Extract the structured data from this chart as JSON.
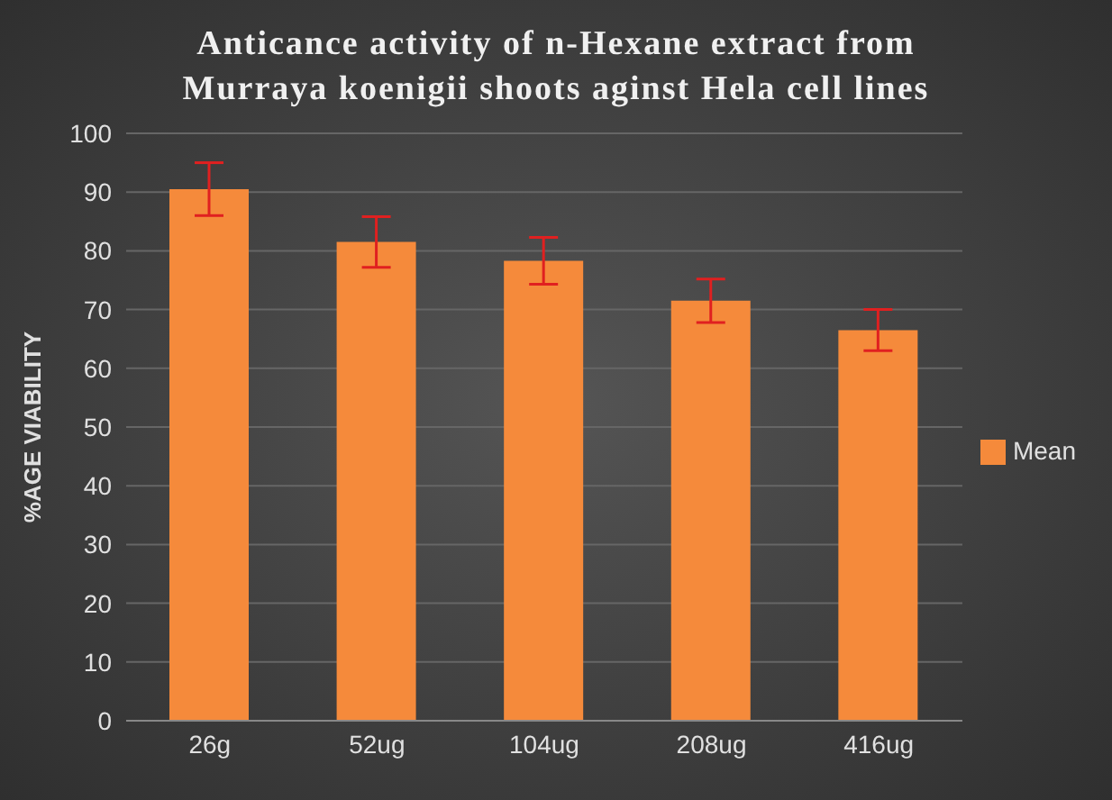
{
  "chart_data": {
    "type": "bar",
    "title": "Anticance activity of n-Hexane extract from Murraya koenigii shoots aginst Hela cell lines",
    "ylabel": "%AGE VIABILITY",
    "categories": [
      "26g",
      "52ug",
      "104ug",
      "208ug",
      "416ug"
    ],
    "series": [
      {
        "name": "Mean",
        "color": "#f58a3b",
        "values": [
          90.5,
          81.5,
          78.3,
          71.5,
          66.5
        ],
        "errors": [
          4.5,
          4.3,
          4,
          3.7,
          3.5
        ]
      }
    ],
    "ylim": [
      0,
      100
    ],
    "yticks": [
      0,
      10,
      20,
      30,
      40,
      50,
      60,
      70,
      80,
      90,
      100
    ],
    "grid": "y",
    "legend": "right"
  }
}
